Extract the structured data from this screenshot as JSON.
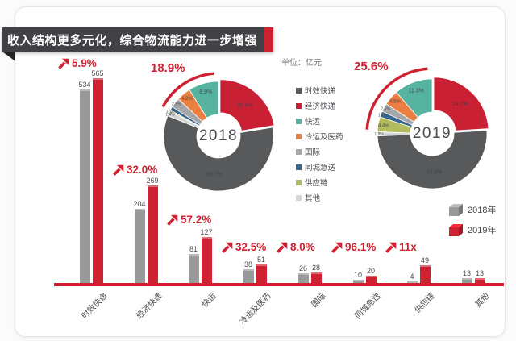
{
  "banner": {
    "title": "收入结构更多元化，综合物流能力进一步增强"
  },
  "unit_label": "单位：亿元",
  "colors": {
    "accent_red": "#ce2131",
    "banner_bg": "#414146",
    "banner_fold": "#26262a",
    "axis_red": "#ce2131",
    "bar_gray": "#98999b",
    "bar_red": "#ce2131"
  },
  "legend": {
    "items": [
      {
        "label": "时效快递",
        "color": "#58595b"
      },
      {
        "label": "经济快递",
        "color": "#c92133"
      },
      {
        "label": "快运",
        "color": "#55b3a0"
      },
      {
        "label": "冷运及医药",
        "color": "#eb7f42"
      },
      {
        "label": "国际",
        "color": "#a4a7aa"
      },
      {
        "label": "同城急送",
        "color": "#38688f"
      },
      {
        "label": "供应链",
        "color": "#b2bc5e"
      },
      {
        "label": "其他",
        "color": "#d3d5d6"
      }
    ]
  },
  "chart_data": [
    {
      "type": "bar",
      "categories": [
        "时效快递",
        "经济快递",
        "快运",
        "冷运及医药",
        "国际",
        "同城急送",
        "供应链",
        "其他"
      ],
      "series": [
        {
          "name": "2018年",
          "color": "#98999b",
          "values": [
            534,
            204,
            81,
            38,
            26,
            10,
            4,
            13
          ]
        },
        {
          "name": "2019年",
          "color": "#ce2131",
          "values": [
            565,
            269,
            127,
            51,
            28,
            20,
            49,
            13
          ]
        }
      ],
      "growth_labels": [
        "5.9%",
        "32.0%",
        "57.2%",
        "32.5%",
        "8.0%",
        "96.1%",
        "11x",
        null
      ],
      "ylabel": "单位：亿元",
      "ylim": [
        0,
        600
      ],
      "grid": false,
      "legend_position": "right"
    },
    {
      "type": "pie",
      "title": "2018",
      "callout": "18.9%",
      "labels": [
        "时效快递",
        "经济快递",
        "快运",
        "冷运及医药",
        "国际",
        "同城急送",
        "供应链",
        "其他"
      ],
      "values": [
        58.7,
        22.4,
        8.9,
        4.2,
        2.9,
        1.1,
        0.4,
        1.4
      ],
      "unit": "%"
    },
    {
      "type": "pie",
      "title": "2019",
      "callout": "25.6%",
      "labels": [
        "时效快递",
        "经济快递",
        "快运",
        "冷运及医药",
        "国际",
        "同城急送",
        "供应链",
        "其他"
      ],
      "values": [
        50.4,
        24.0,
        11.3,
        4.5,
        2.5,
        1.7,
        4.4,
        1.2
      ],
      "unit": "%"
    }
  ]
}
